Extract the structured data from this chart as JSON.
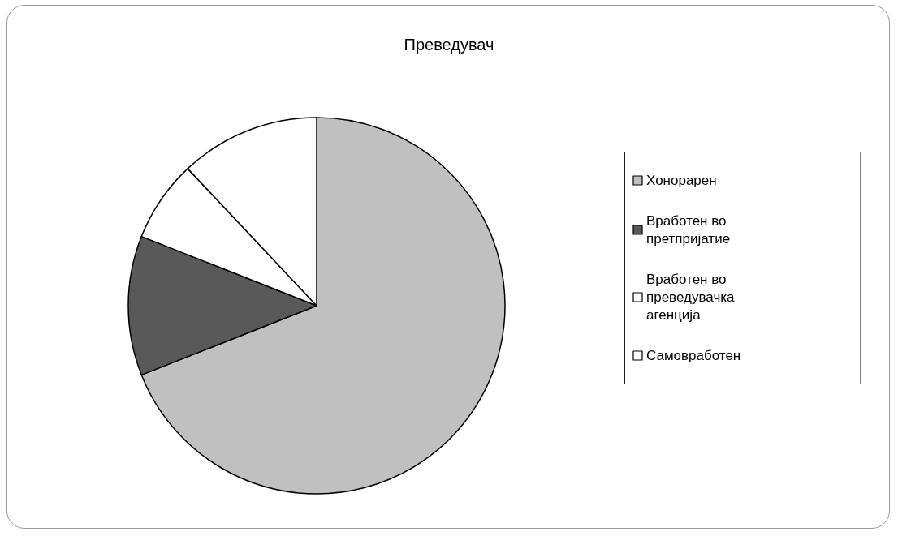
{
  "chart_data": {
    "type": "pie",
    "title": "Преведувач",
    "categories": [
      "Хонорарен",
      "Вработен во претпријатие",
      "Вработен во преведувачка агенција",
      "Самовработен"
    ],
    "values": [
      69,
      12,
      7,
      12
    ],
    "colors": [
      "#c0c0c0",
      "#595959",
      "#ffffff",
      "#ffffff"
    ],
    "legend": "right"
  }
}
